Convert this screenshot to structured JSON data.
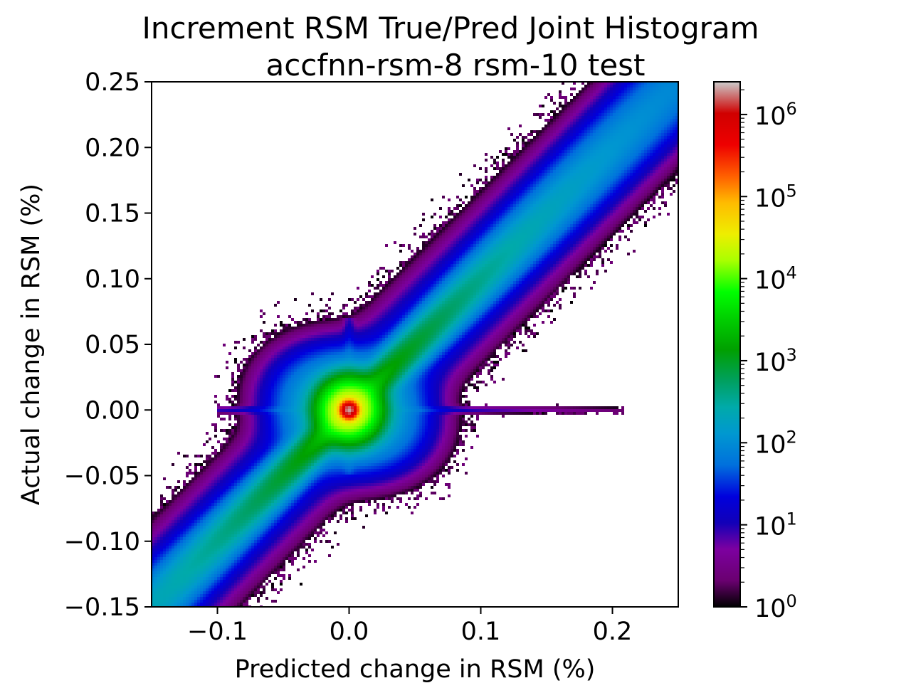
{
  "chart_data": {
    "type": "heatmap",
    "title": "Increment RSM True/Pred Joint Histogram",
    "subtitle": "accfnn-rsm-8 rsm-10 test",
    "xlabel": "Predicted change in RSM (%)",
    "ylabel": "Actual change in RSM (%)",
    "xlim": [
      -0.15,
      0.25
    ],
    "ylim": [
      -0.15,
      0.25
    ],
    "x_ticks": [
      {
        "value": -0.1,
        "label": "−0.1"
      },
      {
        "value": 0.0,
        "label": "0.0"
      },
      {
        "value": 0.1,
        "label": "0.1"
      },
      {
        "value": 0.2,
        "label": "0.2"
      }
    ],
    "y_ticks": [
      {
        "value": -0.15,
        "label": "−0.15"
      },
      {
        "value": -0.1,
        "label": "−0.10"
      },
      {
        "value": -0.05,
        "label": "−0.05"
      },
      {
        "value": 0.0,
        "label": "0.00"
      },
      {
        "value": 0.05,
        "label": "0.05"
      },
      {
        "value": 0.1,
        "label": "0.10"
      },
      {
        "value": 0.15,
        "label": "0.15"
      },
      {
        "value": 0.2,
        "label": "0.20"
      },
      {
        "value": 0.25,
        "label": "0.25"
      }
    ],
    "colorbar": {
      "scale": "log",
      "range": [
        1,
        2500000
      ],
      "ticks": [
        {
          "value": 1,
          "base": "10",
          "exp": "0"
        },
        {
          "value": 10,
          "base": "10",
          "exp": "1"
        },
        {
          "value": 100,
          "base": "10",
          "exp": "2"
        },
        {
          "value": 1000,
          "base": "10",
          "exp": "3"
        },
        {
          "value": 10000,
          "base": "10",
          "exp": "4"
        },
        {
          "value": 100000,
          "base": "10",
          "exp": "5"
        },
        {
          "value": 1000000,
          "base": "10",
          "exp": "6"
        }
      ],
      "colormap": "nipy_spectral"
    },
    "density_features": {
      "peak": {
        "x": 0.0,
        "y": 0.0,
        "count": 2000000
      },
      "diagonal_band": {
        "x_range": [
          -0.15,
          0.25
        ],
        "slope": 1.0
      },
      "horizontal_streak": {
        "y": 0.0,
        "x_range": [
          -0.1,
          0.21
        ]
      },
      "vertical_streak": {
        "x": 0.0,
        "y_range": [
          -0.05,
          0.07
        ]
      }
    },
    "grid": false
  }
}
